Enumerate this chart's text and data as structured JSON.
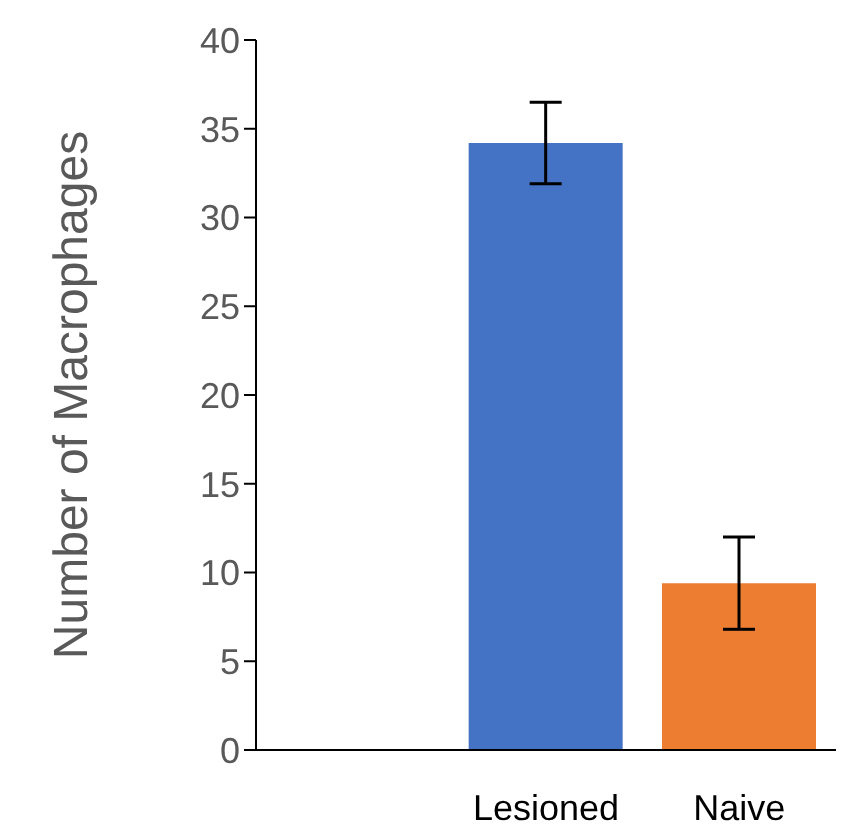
{
  "chart_data": {
    "type": "bar",
    "ylabel": "Number of Macrophages",
    "categories": [
      null,
      "Lesioned",
      "Naive"
    ],
    "values": [
      null,
      34.2,
      9.4
    ],
    "errors": [
      null,
      2.3,
      2.6
    ],
    "colors": [
      "#4472c4",
      "#4472c4",
      "#ed7d31"
    ],
    "ylim": [
      0,
      40
    ],
    "yticks": [
      0,
      5,
      10,
      15,
      20,
      25,
      30,
      35,
      40
    ]
  }
}
